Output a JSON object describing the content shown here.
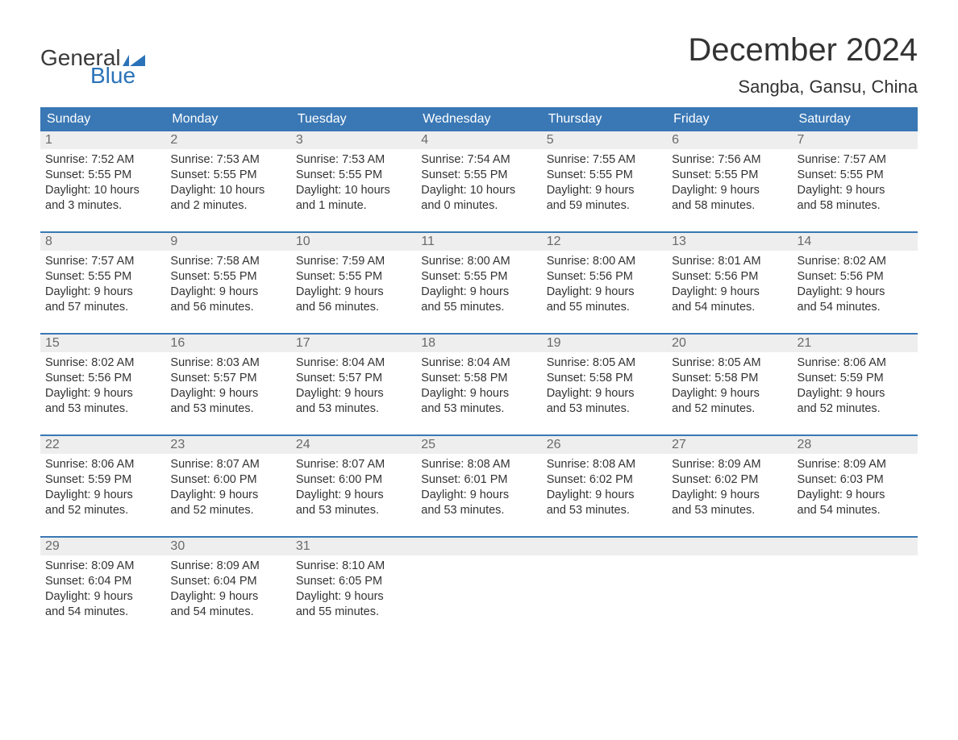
{
  "logo": {
    "text_general": "General",
    "text_blue": "Blue",
    "flag_color": "#2b73b8"
  },
  "title": "December 2024",
  "location": "Sangba, Gansu, China",
  "colors": {
    "header_bg": "#3a78b5",
    "header_text": "#ffffff",
    "daynum_bg": "#eeeeee",
    "daynum_text": "#6a6a6a",
    "body_text": "#333333",
    "week_border": "#3a78b5",
    "page_bg": "#ffffff"
  },
  "typography": {
    "title_fontsize": 40,
    "location_fontsize": 22,
    "dayheader_fontsize": 16,
    "daynum_fontsize": 16,
    "body_fontsize": 14.5
  },
  "day_names": [
    "Sunday",
    "Monday",
    "Tuesday",
    "Wednesday",
    "Thursday",
    "Friday",
    "Saturday"
  ],
  "weeks": [
    [
      {
        "num": "1",
        "sunrise": "Sunrise: 7:52 AM",
        "sunset": "Sunset: 5:55 PM",
        "d1": "Daylight: 10 hours",
        "d2": "and 3 minutes."
      },
      {
        "num": "2",
        "sunrise": "Sunrise: 7:53 AM",
        "sunset": "Sunset: 5:55 PM",
        "d1": "Daylight: 10 hours",
        "d2": "and 2 minutes."
      },
      {
        "num": "3",
        "sunrise": "Sunrise: 7:53 AM",
        "sunset": "Sunset: 5:55 PM",
        "d1": "Daylight: 10 hours",
        "d2": "and 1 minute."
      },
      {
        "num": "4",
        "sunrise": "Sunrise: 7:54 AM",
        "sunset": "Sunset: 5:55 PM",
        "d1": "Daylight: 10 hours",
        "d2": "and 0 minutes."
      },
      {
        "num": "5",
        "sunrise": "Sunrise: 7:55 AM",
        "sunset": "Sunset: 5:55 PM",
        "d1": "Daylight: 9 hours",
        "d2": "and 59 minutes."
      },
      {
        "num": "6",
        "sunrise": "Sunrise: 7:56 AM",
        "sunset": "Sunset: 5:55 PM",
        "d1": "Daylight: 9 hours",
        "d2": "and 58 minutes."
      },
      {
        "num": "7",
        "sunrise": "Sunrise: 7:57 AM",
        "sunset": "Sunset: 5:55 PM",
        "d1": "Daylight: 9 hours",
        "d2": "and 58 minutes."
      }
    ],
    [
      {
        "num": "8",
        "sunrise": "Sunrise: 7:57 AM",
        "sunset": "Sunset: 5:55 PM",
        "d1": "Daylight: 9 hours",
        "d2": "and 57 minutes."
      },
      {
        "num": "9",
        "sunrise": "Sunrise: 7:58 AM",
        "sunset": "Sunset: 5:55 PM",
        "d1": "Daylight: 9 hours",
        "d2": "and 56 minutes."
      },
      {
        "num": "10",
        "sunrise": "Sunrise: 7:59 AM",
        "sunset": "Sunset: 5:55 PM",
        "d1": "Daylight: 9 hours",
        "d2": "and 56 minutes."
      },
      {
        "num": "11",
        "sunrise": "Sunrise: 8:00 AM",
        "sunset": "Sunset: 5:55 PM",
        "d1": "Daylight: 9 hours",
        "d2": "and 55 minutes."
      },
      {
        "num": "12",
        "sunrise": "Sunrise: 8:00 AM",
        "sunset": "Sunset: 5:56 PM",
        "d1": "Daylight: 9 hours",
        "d2": "and 55 minutes."
      },
      {
        "num": "13",
        "sunrise": "Sunrise: 8:01 AM",
        "sunset": "Sunset: 5:56 PM",
        "d1": "Daylight: 9 hours",
        "d2": "and 54 minutes."
      },
      {
        "num": "14",
        "sunrise": "Sunrise: 8:02 AM",
        "sunset": "Sunset: 5:56 PM",
        "d1": "Daylight: 9 hours",
        "d2": "and 54 minutes."
      }
    ],
    [
      {
        "num": "15",
        "sunrise": "Sunrise: 8:02 AM",
        "sunset": "Sunset: 5:56 PM",
        "d1": "Daylight: 9 hours",
        "d2": "and 53 minutes."
      },
      {
        "num": "16",
        "sunrise": "Sunrise: 8:03 AM",
        "sunset": "Sunset: 5:57 PM",
        "d1": "Daylight: 9 hours",
        "d2": "and 53 minutes."
      },
      {
        "num": "17",
        "sunrise": "Sunrise: 8:04 AM",
        "sunset": "Sunset: 5:57 PM",
        "d1": "Daylight: 9 hours",
        "d2": "and 53 minutes."
      },
      {
        "num": "18",
        "sunrise": "Sunrise: 8:04 AM",
        "sunset": "Sunset: 5:58 PM",
        "d1": "Daylight: 9 hours",
        "d2": "and 53 minutes."
      },
      {
        "num": "19",
        "sunrise": "Sunrise: 8:05 AM",
        "sunset": "Sunset: 5:58 PM",
        "d1": "Daylight: 9 hours",
        "d2": "and 53 minutes."
      },
      {
        "num": "20",
        "sunrise": "Sunrise: 8:05 AM",
        "sunset": "Sunset: 5:58 PM",
        "d1": "Daylight: 9 hours",
        "d2": "and 52 minutes."
      },
      {
        "num": "21",
        "sunrise": "Sunrise: 8:06 AM",
        "sunset": "Sunset: 5:59 PM",
        "d1": "Daylight: 9 hours",
        "d2": "and 52 minutes."
      }
    ],
    [
      {
        "num": "22",
        "sunrise": "Sunrise: 8:06 AM",
        "sunset": "Sunset: 5:59 PM",
        "d1": "Daylight: 9 hours",
        "d2": "and 52 minutes."
      },
      {
        "num": "23",
        "sunrise": "Sunrise: 8:07 AM",
        "sunset": "Sunset: 6:00 PM",
        "d1": "Daylight: 9 hours",
        "d2": "and 52 minutes."
      },
      {
        "num": "24",
        "sunrise": "Sunrise: 8:07 AM",
        "sunset": "Sunset: 6:00 PM",
        "d1": "Daylight: 9 hours",
        "d2": "and 53 minutes."
      },
      {
        "num": "25",
        "sunrise": "Sunrise: 8:08 AM",
        "sunset": "Sunset: 6:01 PM",
        "d1": "Daylight: 9 hours",
        "d2": "and 53 minutes."
      },
      {
        "num": "26",
        "sunrise": "Sunrise: 8:08 AM",
        "sunset": "Sunset: 6:02 PM",
        "d1": "Daylight: 9 hours",
        "d2": "and 53 minutes."
      },
      {
        "num": "27",
        "sunrise": "Sunrise: 8:09 AM",
        "sunset": "Sunset: 6:02 PM",
        "d1": "Daylight: 9 hours",
        "d2": "and 53 minutes."
      },
      {
        "num": "28",
        "sunrise": "Sunrise: 8:09 AM",
        "sunset": "Sunset: 6:03 PM",
        "d1": "Daylight: 9 hours",
        "d2": "and 54 minutes."
      }
    ],
    [
      {
        "num": "29",
        "sunrise": "Sunrise: 8:09 AM",
        "sunset": "Sunset: 6:04 PM",
        "d1": "Daylight: 9 hours",
        "d2": "and 54 minutes."
      },
      {
        "num": "30",
        "sunrise": "Sunrise: 8:09 AM",
        "sunset": "Sunset: 6:04 PM",
        "d1": "Daylight: 9 hours",
        "d2": "and 54 minutes."
      },
      {
        "num": "31",
        "sunrise": "Sunrise: 8:10 AM",
        "sunset": "Sunset: 6:05 PM",
        "d1": "Daylight: 9 hours",
        "d2": "and 55 minutes."
      },
      null,
      null,
      null,
      null
    ]
  ]
}
